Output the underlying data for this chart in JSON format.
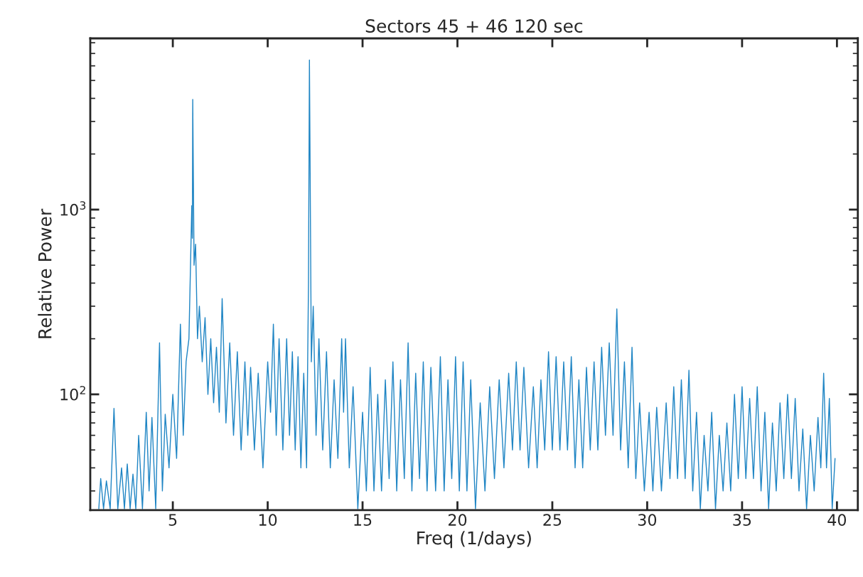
{
  "chart_data": {
    "type": "line",
    "title": "Sectors 45 + 46 120 sec",
    "xlabel": "Freq (1/days)",
    "ylabel": "Relative Power",
    "log": "y",
    "grid": false,
    "marker": "none",
    "line_style": "solid",
    "xlim": [
      0.65,
      41.1
    ],
    "ylim": [
      23.6,
      8450
    ],
    "xticks": [
      5,
      10,
      15,
      20,
      25,
      30,
      35,
      40
    ],
    "yticks": [
      {
        "value": 100,
        "label": "10$^{2}$"
      },
      {
        "value": 1000,
        "label": "10$^{3}$"
      }
    ],
    "series": [
      {
        "color": "#1f85c4",
        "x": [
          1.1,
          1.2,
          1.35,
          1.5,
          1.7,
          1.9,
          2.1,
          2.3,
          2.45,
          2.6,
          2.75,
          2.9,
          3.05,
          3.2,
          3.4,
          3.6,
          3.75,
          3.9,
          4.1,
          4.3,
          4.45,
          4.6,
          4.8,
          5.0,
          5.2,
          5.4,
          5.55,
          5.7,
          5.85,
          6.0,
          6.03,
          6.05,
          6.12,
          6.2,
          6.3,
          6.4,
          6.55,
          6.7,
          6.85,
          7.0,
          7.15,
          7.3,
          7.45,
          7.6,
          7.8,
          8.0,
          8.2,
          8.4,
          8.6,
          8.8,
          8.95,
          9.1,
          9.3,
          9.5,
          9.75,
          10.0,
          10.15,
          10.3,
          10.45,
          10.6,
          10.8,
          11.0,
          11.15,
          11.3,
          11.45,
          11.6,
          11.75,
          11.9,
          12.05,
          12.15,
          12.2,
          12.3,
          12.4,
          12.55,
          12.7,
          12.9,
          13.1,
          13.3,
          13.5,
          13.7,
          13.9,
          14.0,
          14.1,
          14.3,
          14.5,
          14.75,
          15.0,
          15.2,
          15.4,
          15.6,
          15.8,
          16.0,
          16.2,
          16.4,
          16.6,
          16.8,
          17.0,
          17.2,
          17.4,
          17.6,
          17.8,
          18.0,
          18.2,
          18.4,
          18.6,
          18.85,
          19.1,
          19.3,
          19.5,
          19.7,
          19.9,
          20.1,
          20.3,
          20.5,
          20.7,
          20.95,
          21.2,
          21.45,
          21.7,
          21.95,
          22.2,
          22.45,
          22.7,
          22.9,
          23.1,
          23.3,
          23.5,
          23.75,
          24.0,
          24.2,
          24.4,
          24.6,
          24.8,
          25.0,
          25.2,
          25.4,
          25.6,
          25.8,
          26.0,
          26.2,
          26.4,
          26.6,
          26.8,
          27.0,
          27.2,
          27.4,
          27.6,
          27.8,
          28.0,
          28.2,
          28.4,
          28.6,
          28.8,
          29.0,
          29.2,
          29.4,
          29.6,
          29.85,
          30.1,
          30.3,
          30.5,
          30.75,
          31.0,
          31.2,
          31.4,
          31.6,
          31.8,
          32.0,
          32.2,
          32.4,
          32.6,
          32.8,
          33.0,
          33.2,
          33.4,
          33.6,
          33.8,
          34.0,
          34.2,
          34.4,
          34.6,
          34.8,
          35.0,
          35.2,
          35.4,
          35.6,
          35.8,
          36.0,
          36.2,
          36.4,
          36.6,
          36.8,
          37.0,
          37.2,
          37.4,
          37.6,
          37.8,
          38.0,
          38.2,
          38.4,
          38.6,
          38.8,
          39.0,
          39.15,
          39.3,
          39.45,
          39.6,
          39.75,
          39.9
        ],
        "values": [
          24,
          35,
          24,
          34,
          24,
          84,
          24,
          40,
          24,
          42,
          24,
          37,
          24,
          60,
          24,
          80,
          30,
          75,
          24,
          190,
          30,
          78,
          40,
          100,
          45,
          240,
          60,
          150,
          200,
          1050,
          700,
          3950,
          500,
          650,
          200,
          300,
          150,
          260,
          100,
          200,
          90,
          180,
          80,
          330,
          70,
          190,
          60,
          170,
          50,
          150,
          60,
          140,
          50,
          130,
          40,
          150,
          80,
          240,
          60,
          200,
          50,
          200,
          60,
          170,
          50,
          160,
          40,
          130,
          40,
          400,
          6450,
          150,
          300,
          60,
          200,
          50,
          170,
          40,
          120,
          45,
          200,
          80,
          200,
          40,
          110,
          24,
          80,
          30,
          140,
          30,
          100,
          30,
          120,
          35,
          150,
          30,
          120,
          35,
          190,
          30,
          130,
          35,
          150,
          30,
          140,
          30,
          160,
          30,
          120,
          35,
          160,
          30,
          150,
          30,
          120,
          24,
          90,
          30,
          110,
          35,
          120,
          40,
          130,
          50,
          150,
          50,
          140,
          40,
          110,
          40,
          120,
          50,
          170,
          50,
          160,
          50,
          150,
          50,
          160,
          40,
          120,
          40,
          140,
          50,
          150,
          50,
          180,
          60,
          190,
          60,
          290,
          50,
          150,
          40,
          180,
          35,
          90,
          30,
          80,
          30,
          85,
          30,
          90,
          35,
          110,
          35,
          120,
          35,
          135,
          30,
          80,
          24,
          60,
          30,
          80,
          24,
          60,
          30,
          70,
          30,
          100,
          35,
          110,
          35,
          95,
          35,
          110,
          30,
          80,
          24,
          70,
          30,
          90,
          35,
          100,
          35,
          95,
          30,
          65,
          24,
          60,
          30,
          75,
          40,
          130,
          40,
          95,
          24,
          45
        ]
      }
    ]
  }
}
